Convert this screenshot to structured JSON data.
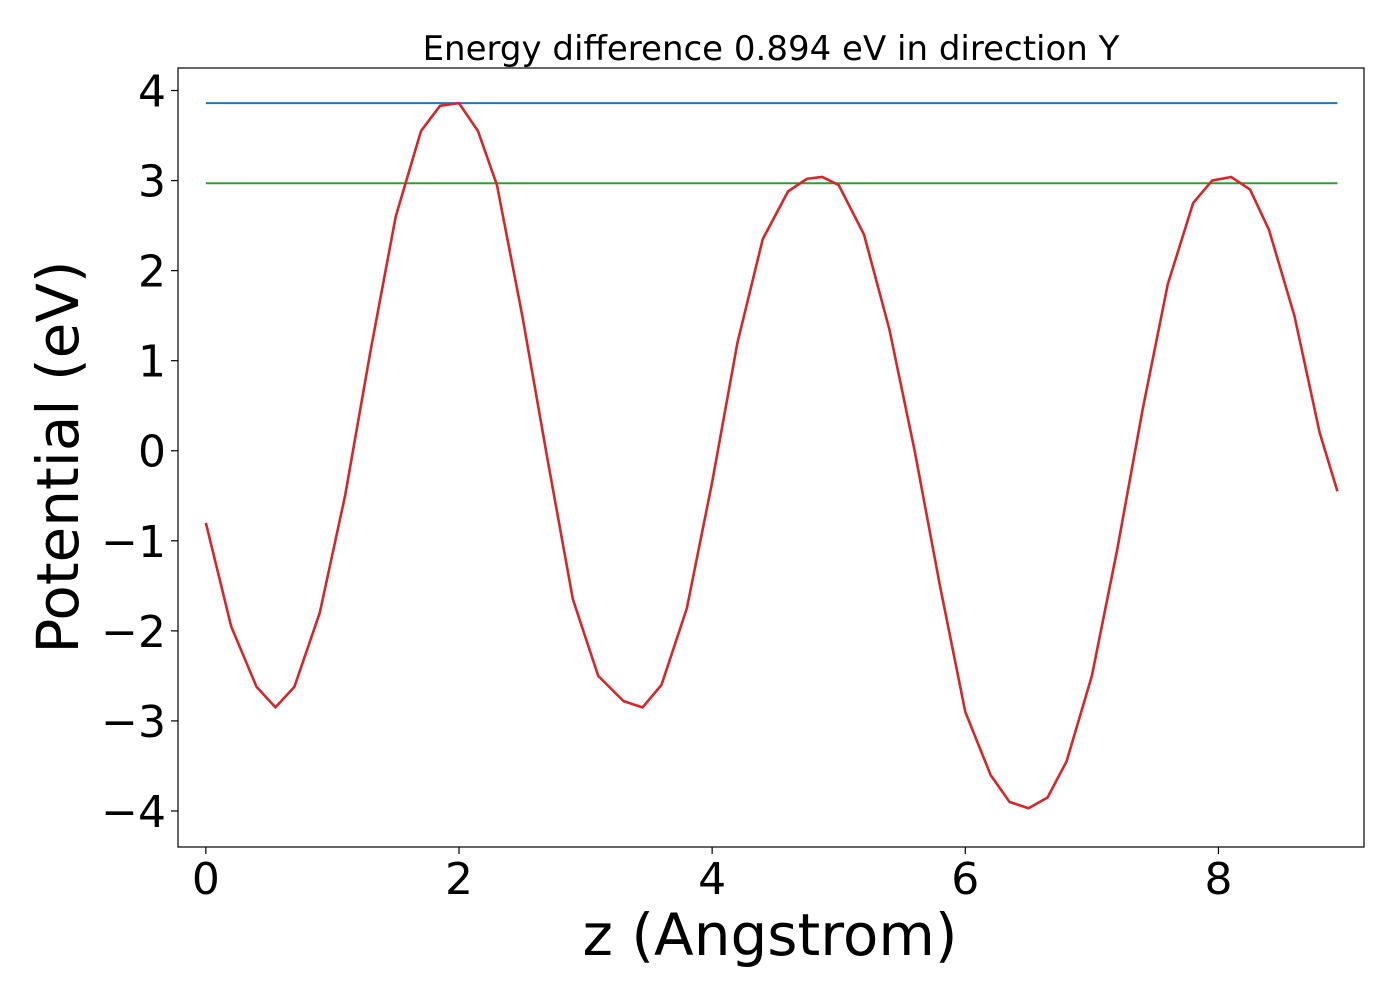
{
  "chart_data": {
    "type": "line",
    "title": "Energy difference 0.894 eV in direction Y",
    "xlabel": "z (Angstrom)",
    "ylabel": "Potential (eV)",
    "xlim": [
      -0.22,
      9.15
    ],
    "ylim": [
      -4.4,
      4.25
    ],
    "xticks": [
      0,
      2,
      4,
      6,
      8
    ],
    "xtick_labels": [
      "0",
      "2",
      "4",
      "6",
      "8"
    ],
    "yticks": [
      -4,
      -3,
      -2,
      -1,
      0,
      1,
      2,
      3,
      4
    ],
    "ytick_labels": [
      "−4",
      "−3",
      "−2",
      "−1",
      "0",
      "1",
      "2",
      "3",
      "4"
    ],
    "grid": false,
    "series": [
      {
        "color": "#1f77b4",
        "x": [
          0,
          8.94
        ],
        "y": [
          3.86,
          3.86
        ]
      },
      {
        "color": "#2ca02c",
        "x": [
          0,
          8.94
        ],
        "y": [
          2.97,
          2.97
        ]
      },
      {
        "color": "#d62728",
        "x": [
          0.0,
          0.2,
          0.4,
          0.55,
          0.7,
          0.9,
          1.1,
          1.3,
          1.5,
          1.7,
          1.85,
          2.0,
          2.15,
          2.3,
          2.5,
          2.7,
          2.9,
          3.1,
          3.3,
          3.45,
          3.6,
          3.8,
          4.0,
          4.2,
          4.4,
          4.6,
          4.75,
          4.87,
          5.0,
          5.2,
          5.4,
          5.6,
          5.8,
          6.0,
          6.2,
          6.35,
          6.5,
          6.65,
          6.8,
          7.0,
          7.2,
          7.4,
          7.6,
          7.8,
          7.95,
          8.1,
          8.25,
          8.4,
          8.6,
          8.8,
          8.94
        ],
        "y": [
          -0.8,
          -1.95,
          -2.62,
          -2.85,
          -2.62,
          -1.8,
          -0.5,
          1.1,
          2.6,
          3.55,
          3.83,
          3.86,
          3.55,
          2.95,
          1.5,
          -0.1,
          -1.65,
          -2.5,
          -2.78,
          -2.85,
          -2.6,
          -1.75,
          -0.35,
          1.2,
          2.35,
          2.88,
          3.02,
          3.04,
          2.95,
          2.4,
          1.35,
          0.0,
          -1.5,
          -2.9,
          -3.6,
          -3.9,
          -3.97,
          -3.85,
          -3.45,
          -2.5,
          -1.1,
          0.45,
          1.85,
          2.75,
          3.0,
          3.04,
          2.9,
          2.45,
          1.5,
          0.2,
          -0.45
        ]
      }
    ]
  }
}
